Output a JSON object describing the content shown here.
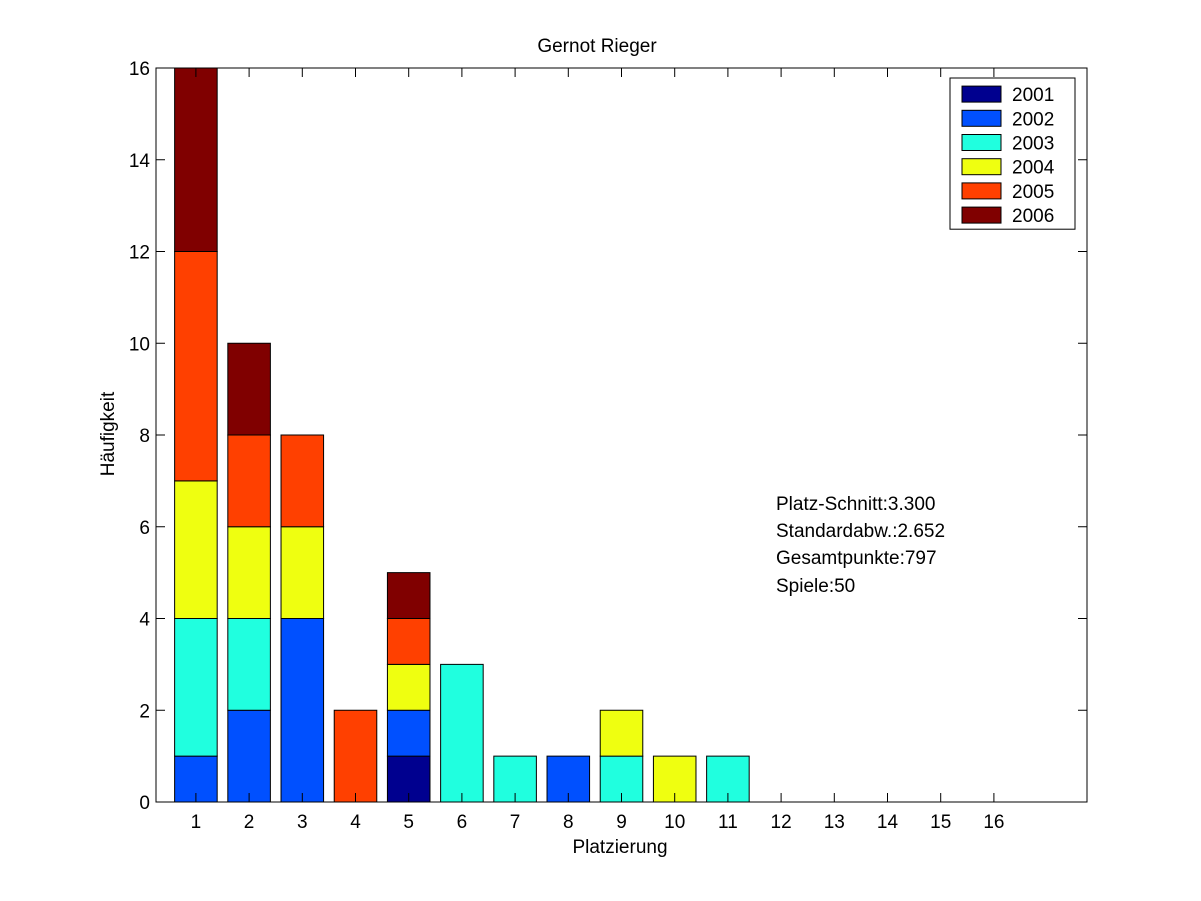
{
  "chart_data": {
    "type": "bar",
    "stacked": true,
    "title": "Gernot Rieger",
    "xlabel": "Platzierung",
    "ylabel": "Häufigkeit",
    "categories": [
      "1",
      "2",
      "3",
      "4",
      "5",
      "6",
      "7",
      "8",
      "9",
      "10",
      "11",
      "12",
      "13",
      "14",
      "15",
      "16"
    ],
    "xlim": [
      0.25,
      17.75
    ],
    "ylim": [
      0,
      16
    ],
    "yticks": [
      0,
      2,
      4,
      6,
      8,
      10,
      12,
      14,
      16
    ],
    "grid": false,
    "legend_position": "top-right",
    "series": [
      {
        "name": "2001",
        "color": "#00008f",
        "values": [
          0,
          0,
          0,
          0,
          1,
          0,
          0,
          0,
          0,
          0,
          0,
          0,
          0,
          0,
          0,
          0
        ]
      },
      {
        "name": "2002",
        "color": "#0050ff",
        "values": [
          1,
          2,
          4,
          0,
          1,
          0,
          0,
          1,
          0,
          0,
          0,
          0,
          0,
          0,
          0,
          0
        ]
      },
      {
        "name": "2003",
        "color": "#20ffdf",
        "values": [
          3,
          2,
          0,
          0,
          0,
          3,
          1,
          0,
          1,
          0,
          1,
          0,
          0,
          0,
          0,
          0
        ]
      },
      {
        "name": "2004",
        "color": "#efff10",
        "values": [
          3,
          2,
          2,
          0,
          1,
          0,
          0,
          0,
          1,
          1,
          0,
          0,
          0,
          0,
          0,
          0
        ]
      },
      {
        "name": "2005",
        "color": "#ff4000",
        "values": [
          5,
          2,
          2,
          2,
          1,
          0,
          0,
          0,
          0,
          0,
          0,
          0,
          0,
          0,
          0,
          0
        ]
      },
      {
        "name": "2006",
        "color": "#800000",
        "values": [
          4,
          2,
          0,
          0,
          1,
          0,
          0,
          0,
          0,
          0,
          0,
          0,
          0,
          0,
          0,
          0
        ]
      }
    ],
    "annotations": [
      "Platz-Schnitt:3.300",
      "Standardabw.:2.652",
      "Gesamtpunkte:797",
      "Spiele:50"
    ]
  }
}
